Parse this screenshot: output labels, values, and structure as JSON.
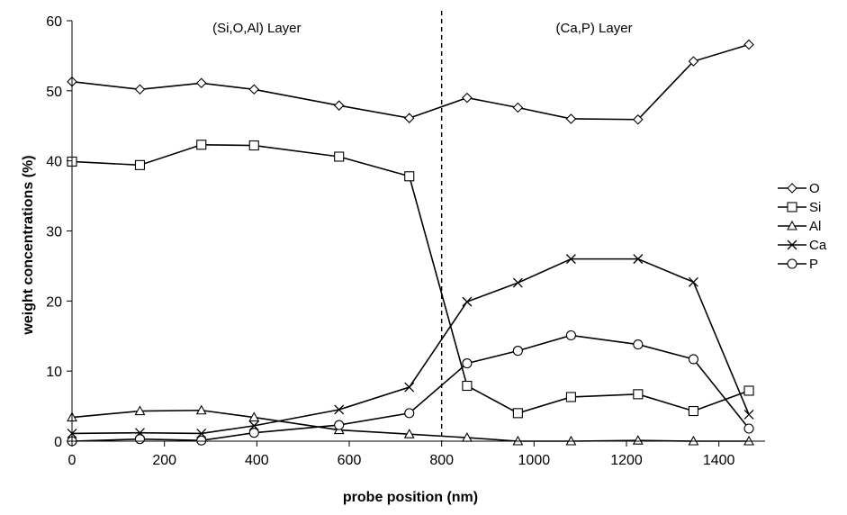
{
  "chart_data": {
    "type": "line",
    "xlabel": "probe position (nm)",
    "ylabel": "weight concentrations (%)",
    "xlim": [
      0,
      1500
    ],
    "ylim": [
      0,
      60
    ],
    "xticks": [
      0,
      200,
      400,
      600,
      800,
      1000,
      1200,
      1400
    ],
    "yticks": [
      0,
      10,
      20,
      30,
      40,
      50,
      60
    ],
    "grid": false,
    "legend_position": "right",
    "divider_x": 800,
    "regions": [
      {
        "label": "(Si,O,Al) Layer"
      },
      {
        "label": "(Ca,P) Layer"
      }
    ],
    "x": [
      0,
      147,
      280,
      394,
      578,
      730,
      855,
      965,
      1080,
      1225,
      1345,
      1465
    ],
    "series": [
      {
        "name": "O",
        "marker": "diamond",
        "values": [
          51.3,
          50.2,
          51.1,
          50.2,
          47.9,
          46.1,
          49.0,
          47.6,
          46.0,
          45.9,
          54.2,
          56.6
        ]
      },
      {
        "name": "Si",
        "marker": "square",
        "values": [
          39.9,
          39.4,
          42.3,
          42.2,
          40.6,
          37.8,
          7.9,
          4.0,
          6.3,
          6.7,
          4.3,
          7.2
        ]
      },
      {
        "name": "Al",
        "marker": "triangle",
        "values": [
          3.4,
          4.3,
          4.4,
          3.4,
          1.6,
          1.0,
          0.5,
          0.0,
          0.0,
          0.1,
          0.0,
          0.0
        ]
      },
      {
        "name": "Ca",
        "marker": "x",
        "values": [
          1.1,
          1.2,
          1.1,
          2.2,
          4.5,
          7.7,
          19.9,
          22.6,
          26.0,
          26.0,
          22.7,
          3.8
        ]
      },
      {
        "name": "P",
        "marker": "circle",
        "values": [
          0.0,
          0.3,
          0.1,
          1.2,
          2.3,
          4.0,
          11.1,
          12.9,
          15.1,
          13.8,
          11.7,
          1.8
        ]
      }
    ]
  }
}
